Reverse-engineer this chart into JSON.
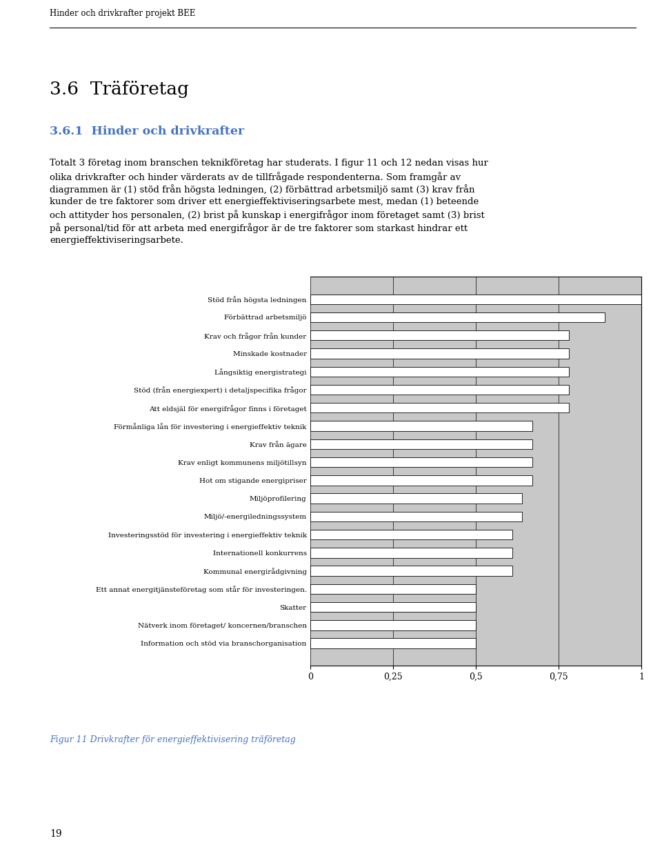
{
  "title_header": "Hinder och drivkrafter projekt BEE",
  "section_title": "3.6  Träföretag",
  "subsection_title": "3.6.1  Hinder och drivkrafter",
  "body_text_lines": [
    "Totalt 3 företag inom branschen teknikföretag har studerats. I figur 11 och 12 nedan visas hur",
    "olika drivkrafter och hinder värderats av de tillfrågade respondenterna. Som framgår av",
    "diagrammen är (1) stöd från högsta ledningen, (2) förbättrad arbetsmiljö samt (3) krav från",
    "kunder de tre faktorer som driver ett energieffektiviseringsarbete mest, medan (1) beteende",
    "och attityder hos personalen, (2) brist på kunskap i energifrågor inom företaget samt (3) brist",
    "på personal/tid för att arbeta med energifrågor är de tre faktorer som starkast hindrar ett",
    "energieffektiviseringsarbete."
  ],
  "categories": [
    "Stöd från högsta ledningen",
    "Förbättrad arbetsmiljö",
    "Krav och frågor från kunder",
    "Minskade kostnader",
    "Långsiktig energistrategi",
    "Stöd (från energiexpert) i detaljspecifika frågor",
    "Att eldsjäl för energifrågor finns i företaget",
    "Förmånliga lån för investering i energieffektiv teknik",
    "Krav från ägare",
    "Krav enligt kommunens miljötillsyn",
    "Hot om stigande energipriser",
    "Miljöprofilering",
    "Miljö/-energiledningssystem",
    "Investeringsstöd för investering i energieffektiv teknik",
    "Internationell konkurrens",
    "Kommunal energirådgivning",
    "Ett annat energitjänsteföretag som står för investeringen.",
    "Skatter",
    "Nätverk inom företaget/ koncernen/branschen",
    "Information och stöd via branschorganisation"
  ],
  "values": [
    1.0,
    0.89,
    0.78,
    0.78,
    0.78,
    0.78,
    0.78,
    0.67,
    0.67,
    0.67,
    0.67,
    0.64,
    0.64,
    0.61,
    0.61,
    0.61,
    0.5,
    0.5,
    0.5,
    0.5
  ],
  "xlim": [
    0,
    1.0
  ],
  "xticks": [
    0,
    0.25,
    0.5,
    0.75,
    1
  ],
  "xticklabels": [
    "0",
    "0,25",
    "0,5",
    "0,75",
    "1"
  ],
  "bar_color": "#ffffff",
  "bar_edgecolor": "#000000",
  "background_fill": "#c8c8c8",
  "caption": "Figur 11 Drivkrafter för energieffektivisering träföretag",
  "caption_color": "#4472c4",
  "page_number": "19",
  "section_color": "#000000",
  "subsection_color": "#4472c4"
}
